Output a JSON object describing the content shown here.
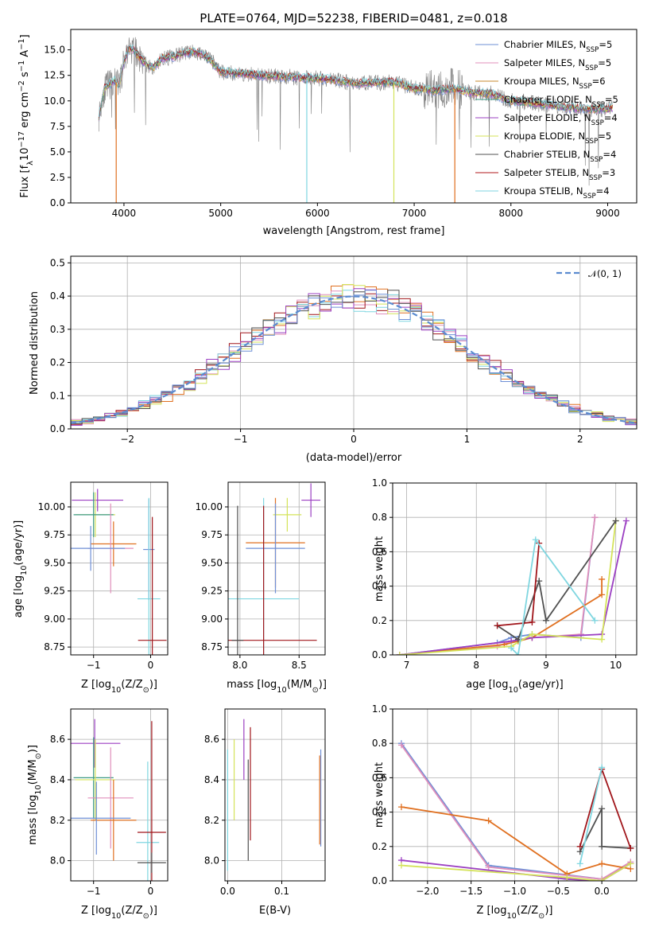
{
  "chart_data": [
    {
      "type": "line",
      "panel": "spectrum",
      "title": "PLATE=0764, MJD=52238, FIBERID=0481, z=0.018",
      "xlabel": "wavelength [Angstrom, rest frame]",
      "ylabel": "Flux [f",
      "ylabel_sub": "λ",
      "ylabel_rest": "10",
      "ylabel_exp1": "−17",
      "ylabel_unit": " erg cm",
      "ylabel_exp2": "−2",
      "ylabel_unit2": " s",
      "ylabel_exp3": "−1",
      "ylabel_unit3": " A",
      "ylabel_exp4": "−1",
      "ylabel_end": "]",
      "xlim": [
        3450,
        9300
      ],
      "ylim": [
        0,
        17
      ],
      "xticks": [
        4000,
        5000,
        6000,
        7000,
        8000,
        9000
      ],
      "yticks": [
        0.0,
        2.5,
        5.0,
        7.5,
        10.0,
        12.5,
        15.0
      ],
      "ytick_labels": [
        "0.0",
        "2.5",
        "5.0",
        "7.5",
        "10.0",
        "12.5",
        "15.0"
      ],
      "grid": false,
      "legend_position": "top-right",
      "data_color": "#808080",
      "continuum": {
        "x": [
          3740,
          3800,
          3900,
          3950,
          4000,
          4050,
          4100,
          4200,
          4300,
          4400,
          4500,
          4600,
          4700,
          4800,
          4900,
          5000,
          5200,
          5400,
          5600,
          5800,
          6000,
          6200,
          6400,
          6600,
          6800,
          7000,
          7200,
          7400,
          7600,
          7800,
          8000,
          8200,
          8400,
          8600,
          8800,
          9000,
          9050
        ],
        "y": [
          8.5,
          11.2,
          12.0,
          11.5,
          13.8,
          15.2,
          15.0,
          13.8,
          13.2,
          14.2,
          14.3,
          14.6,
          14.8,
          14.6,
          14.0,
          12.8,
          12.7,
          12.5,
          12.4,
          12.3,
          12.2,
          12.0,
          11.7,
          11.8,
          11.8,
          11.2,
          11.0,
          11.2,
          10.8,
          10.7,
          10.0,
          9.8,
          9.6,
          9.3,
          9.2,
          9.2,
          9.3
        ]
      },
      "series": [
        {
          "name": "Chabrier MILES, N",
          "sub": "SSP",
          "suffix": "=5",
          "color": "#6e8fd6"
        },
        {
          "name": "Salpeter MILES, N",
          "sub": "SSP",
          "suffix": "=5",
          "color": "#e08fbb"
        },
        {
          "name": "Kroupa MILES, N",
          "sub": "SSP",
          "suffix": "=6",
          "color": "#c78a2e"
        },
        {
          "name": "Chabrier ELODIE, N",
          "sub": "SSP",
          "suffix": "=5",
          "color": "#3d9a86"
        },
        {
          "name": "Salpeter ELODIE, N",
          "sub": "SSP",
          "suffix": "=4",
          "color": "#9b3fc2"
        },
        {
          "name": "Kroupa ELODIE, N",
          "sub": "SSP",
          "suffix": "=5",
          "color": "#d4e35a"
        },
        {
          "name": "Chabrier STELIB, N",
          "sub": "SSP",
          "suffix": "=4",
          "color": "#505050"
        },
        {
          "name": "Salpeter STELIB, N",
          "sub": "SSP",
          "suffix": "=3",
          "color": "#b0191c"
        },
        {
          "name": "Kroupa STELIB, N",
          "sub": "SSP",
          "suffix": "=4",
          "color": "#7fd6e0"
        }
      ]
    },
    {
      "type": "step",
      "panel": "residuals",
      "xlabel": "(data-model)/error",
      "ylabel": "Normed distribution",
      "xlim": [
        -2.5,
        2.5
      ],
      "ylim": [
        0,
        0.52
      ],
      "xticks": [
        -2,
        -1,
        0,
        1,
        2
      ],
      "xtick_labels": [
        "−2",
        "−1",
        "0",
        "1",
        "2"
      ],
      "yticks": [
        0.0,
        0.1,
        0.2,
        0.3,
        0.4,
        0.5
      ],
      "ytick_labels": [
        "0.0",
        "0.1",
        "0.2",
        "0.3",
        "0.4",
        "0.5"
      ],
      "grid": true,
      "legend_position": "top-right",
      "gaussian": {
        "name": "𝒩(0, 1)",
        "color": "#5b8bd0",
        "mean": 0,
        "sigma": 1
      },
      "bin_width": 0.1,
      "series_colors": [
        "#e07020",
        "#e08fbb",
        "#a0151a",
        "#7fd6e0",
        "#d4e35a",
        "#9b3fc2",
        "#505050",
        "#6e8fd6"
      ]
    },
    {
      "type": "scatter",
      "panel": "age-vs-Z",
      "xlabel": "Z [log",
      "xlabel_sub": "10",
      "xlabel_rest": "(Z/Z",
      "xlabel_sun": "⊙",
      "xlabel_end": ")]",
      "ylabel": "age  [log",
      "ylabel_sub": "10",
      "ylabel_rest": "(age/yr)]",
      "xlim": [
        -1.4,
        0.3
      ],
      "ylim": [
        8.68,
        10.22
      ],
      "xticks": [
        -1,
        0
      ],
      "xtick_labels": [
        "−1",
        "0"
      ],
      "yticks": [
        8.75,
        9.0,
        9.25,
        9.5,
        9.75,
        10.0
      ],
      "ytick_labels": [
        "8.75",
        "9.00",
        "9.25",
        "9.50",
        "9.75",
        "10.00"
      ],
      "grid": true,
      "points": [
        {
          "x": -0.93,
          "y": 10.06,
          "xerr": 0.45,
          "yerr": 0.1,
          "color": "#9b3fc2"
        },
        {
          "x": -0.97,
          "y": 9.93,
          "xerr": 0.35,
          "yerr": 0.2,
          "color": "#d4e35a"
        },
        {
          "x": -1.0,
          "y": 9.93,
          "xerr": 0.35,
          "yerr": 0.2,
          "color": "#3d9a86"
        },
        {
          "x": -0.65,
          "y": 9.67,
          "xerr": 0.4,
          "yerr": 0.2,
          "color": "#e07020"
        },
        {
          "x": -0.7,
          "y": 9.63,
          "xerr": 0.4,
          "yerr": 0.4,
          "color": "#e08fbb"
        },
        {
          "x": -1.05,
          "y": 9.63,
          "xerr": 0.6,
          "yerr": 0.2,
          "color": "#6e8fd6"
        },
        {
          "x": -0.03,
          "y": 9.62,
          "xerr": 0.1,
          "yerr": 0.45,
          "color": "#6e8fd6"
        },
        {
          "x": -0.03,
          "y": 9.18,
          "xerr": 0.2,
          "yerr": 0.9,
          "color": "#7fd6e0"
        },
        {
          "x": 0.03,
          "y": 8.81,
          "xerr": 0.25,
          "yerr": 1.1,
          "color": "#a0151a"
        }
      ]
    },
    {
      "type": "scatter",
      "panel": "age-vs-mass",
      "xlabel": "mass [log",
      "xlabel_sub": "10",
      "xlabel_rest": "(M/M",
      "xlabel_sun": "⊙",
      "xlabel_end": ")]",
      "xlim": [
        7.9,
        8.72
      ],
      "ylim": [
        8.68,
        10.22
      ],
      "xticks": [
        8.0,
        8.5
      ],
      "xtick_labels": [
        "8.0",
        "8.5"
      ],
      "yticks": [
        8.75,
        9.0,
        9.25,
        9.5,
        9.75,
        10.0
      ],
      "ytick_labels": [
        "8.75",
        "9.00",
        "9.25",
        "9.50",
        "9.75",
        "10.00"
      ],
      "grid": true,
      "points": [
        {
          "x": 8.6,
          "y": 10.06,
          "xerr": 0.08,
          "yerr": 0.15,
          "color": "#9b3fc2"
        },
        {
          "x": 8.4,
          "y": 9.93,
          "xerr": 0.12,
          "yerr": 0.15,
          "color": "#d4e35a"
        },
        {
          "x": 8.3,
          "y": 9.68,
          "xerr": 0.25,
          "yerr": 0.4,
          "color": "#e07020"
        },
        {
          "x": 8.3,
          "y": 9.63,
          "xerr": 0.25,
          "yerr": 0.4,
          "color": "#6e8fd6"
        },
        {
          "x": 8.2,
          "y": 9.18,
          "xerr": 0.3,
          "yerr": 0.9,
          "color": "#7fd6e0"
        },
        {
          "x": 8.2,
          "y": 8.81,
          "xerr": 0.45,
          "yerr": 1.2,
          "color": "#a0151a"
        },
        {
          "x": 7.98,
          "y": 8.81,
          "xerr": 0.05,
          "yerr": 1.2,
          "color": "#505050"
        }
      ]
    },
    {
      "type": "line",
      "panel": "mass-weight-vs-age",
      "xlabel": "age  [log",
      "xlabel_sub": "10",
      "xlabel_rest": "(age/yr)]",
      "ylabel": "mass weight",
      "xlim": [
        6.8,
        10.3
      ],
      "ylim": [
        0,
        1
      ],
      "xticks": [
        7,
        8,
        9,
        10
      ],
      "xtick_labels": [
        "7",
        "8",
        "9",
        "10"
      ],
      "yticks": [
        0.0,
        0.2,
        0.4,
        0.6,
        0.8,
        1.0
      ],
      "ytick_labels": [
        "0.0",
        "0.2",
        "0.4",
        "0.6",
        "0.8",
        "1.0"
      ],
      "grid": true,
      "series": [
        {
          "color": "#6e8fd6",
          "x": [
            6.9,
            8.3,
            8.5,
            8.8,
            9.5,
            9.7
          ],
          "y": [
            0.0,
            0.07,
            0.1,
            0.12,
            0.1,
            0.8
          ]
        },
        {
          "color": "#e08fbb",
          "x": [
            6.9,
            8.3,
            8.5,
            8.8,
            9.5,
            9.7
          ],
          "y": [
            0.0,
            0.05,
            0.08,
            0.1,
            0.12,
            0.8
          ]
        },
        {
          "color": "#e07020",
          "x": [
            6.9,
            8.4,
            8.6,
            8.8,
            9.8,
            9.8
          ],
          "y": [
            0.0,
            0.06,
            0.08,
            0.1,
            0.35,
            0.44
          ]
        },
        {
          "color": "#9b3fc2",
          "x": [
            6.9,
            8.5,
            8.8,
            9.8,
            10.15
          ],
          "y": [
            0.0,
            0.08,
            0.1,
            0.12,
            0.78
          ]
        },
        {
          "color": "#d4e35a",
          "x": [
            6.9,
            8.5,
            8.8,
            9.8,
            10.0
          ],
          "y": [
            0.0,
            0.05,
            0.12,
            0.09,
            0.78
          ]
        },
        {
          "color": "#505050",
          "x": [
            8.3,
            8.6,
            8.9,
            9.0,
            10.0
          ],
          "y": [
            0.17,
            0.09,
            0.43,
            0.2,
            0.78
          ]
        },
        {
          "color": "#a0151a",
          "x": [
            8.3,
            8.8,
            8.9
          ],
          "y": [
            0.17,
            0.19,
            0.65
          ]
        },
        {
          "color": "#7fd6e0",
          "x": [
            8.5,
            8.6,
            8.85,
            9.7
          ],
          "y": [
            0.04,
            0.0,
            0.67,
            0.2
          ]
        }
      ]
    },
    {
      "type": "scatter",
      "panel": "mass-vs-Z",
      "xlabel": "Z [log",
      "xlabel_sub": "10",
      "xlabel_rest": "(Z/Z",
      "xlabel_sun": "⊙",
      "xlabel_end": ")]",
      "ylabel": "mass [log",
      "ylabel_sub": "10",
      "ylabel_rest": "(M/M",
      "ylabel_sun": "⊙",
      "ylabel_end": ")]",
      "xlim": [
        -1.4,
        0.3
      ],
      "ylim": [
        7.9,
        8.75
      ],
      "xticks": [
        -1,
        0
      ],
      "xtick_labels": [
        "−1",
        "0"
      ],
      "yticks": [
        8.0,
        8.2,
        8.4,
        8.6
      ],
      "ytick_labels": [
        "8.0",
        "8.2",
        "8.4",
        "8.6"
      ],
      "grid": true,
      "points": [
        {
          "x": -0.98,
          "y": 8.58,
          "xerr": 0.45,
          "yerr": 0.12,
          "color": "#9b3fc2"
        },
        {
          "x": -1.0,
          "y": 8.41,
          "xerr": 0.35,
          "yerr": 0.2,
          "color": "#3d9a86"
        },
        {
          "x": -0.97,
          "y": 8.4,
          "xerr": 0.35,
          "yerr": 0.2,
          "color": "#d4e35a"
        },
        {
          "x": -0.7,
          "y": 8.31,
          "xerr": 0.4,
          "yerr": 0.25,
          "color": "#e08fbb"
        },
        {
          "x": -0.65,
          "y": 8.2,
          "xerr": 0.4,
          "yerr": 0.2,
          "color": "#e07020"
        },
        {
          "x": -0.95,
          "y": 8.21,
          "xerr": 0.6,
          "yerr": 0.18,
          "color": "#6e8fd6"
        },
        {
          "x": -0.05,
          "y": 8.09,
          "xerr": 0.2,
          "yerr": 0.4,
          "color": "#7fd6e0"
        },
        {
          "x": 0.02,
          "y": 8.14,
          "xerr": 0.25,
          "yerr": 0.55,
          "color": "#a0151a"
        },
        {
          "x": 0.02,
          "y": 7.99,
          "xerr": 0.25,
          "yerr": 0.05,
          "color": "#505050"
        }
      ]
    },
    {
      "type": "errorbar",
      "panel": "mass-vs-EBV",
      "xlabel": "E(B-V)",
      "xlim": [
        -0.005,
        0.18
      ],
      "ylim": [
        7.9,
        8.75
      ],
      "xticks": [
        0.0,
        0.1
      ],
      "xtick_labels": [
        "0.0",
        "0.1"
      ],
      "yticks": [
        8.0,
        8.2,
        8.4,
        8.6
      ],
      "ytick_labels": [
        "8.0",
        "8.2",
        "8.4",
        "8.6"
      ],
      "grid": true,
      "points": [
        {
          "x": 0.0,
          "y": 8.25,
          "yerr": 0.3,
          "color": "#7fd6e0"
        },
        {
          "x": 0.012,
          "y": 8.4,
          "yerr": 0.2,
          "color": "#d4e35a"
        },
        {
          "x": 0.03,
          "y": 8.55,
          "yerr": 0.15,
          "color": "#9b3fc2"
        },
        {
          "x": 0.038,
          "y": 8.25,
          "yerr": 0.25,
          "color": "#505050"
        },
        {
          "x": 0.042,
          "y": 8.38,
          "yerr": 0.28,
          "color": "#a0151a"
        },
        {
          "x": 0.17,
          "y": 8.3,
          "yerr": 0.22,
          "color": "#e07020"
        },
        {
          "x": 0.172,
          "y": 8.31,
          "yerr": 0.24,
          "color": "#6e8fd6"
        }
      ]
    },
    {
      "type": "line",
      "panel": "mass-weight-vs-Z",
      "xlabel": "Z [log",
      "xlabel_sub": "10",
      "xlabel_rest": "(Z/Z",
      "xlabel_sun": "⊙",
      "xlabel_end": ")]",
      "ylabel": "mass weight",
      "xlim": [
        -2.4,
        0.4
      ],
      "ylim": [
        0,
        1
      ],
      "xticks": [
        -2.0,
        -1.5,
        -1.0,
        -0.5,
        0.0
      ],
      "xtick_labels": [
        "−2.0",
        "−1.5",
        "−1.0",
        "−0.5",
        "0.0"
      ],
      "yticks": [
        0.0,
        0.2,
        0.4,
        0.6,
        0.8,
        1.0
      ],
      "ytick_labels": [
        "0.0",
        "0.2",
        "0.4",
        "0.6",
        "0.8",
        "1.0"
      ],
      "grid": true,
      "series": [
        {
          "color": "#6e8fd6",
          "x": [
            -2.3,
            -1.3,
            0.0,
            0.33
          ],
          "y": [
            0.8,
            0.09,
            0.01,
            0.1
          ]
        },
        {
          "color": "#e08fbb",
          "x": [
            -2.3,
            -1.3,
            0.0,
            0.33
          ],
          "y": [
            0.79,
            0.08,
            0.01,
            0.11
          ]
        },
        {
          "color": "#e07020",
          "x": [
            -2.3,
            -1.3,
            -0.4,
            0.0,
            0.33
          ],
          "y": [
            0.43,
            0.35,
            0.04,
            0.1,
            0.07
          ]
        },
        {
          "color": "#9b3fc2",
          "x": [
            -2.3,
            -0.4,
            0.0,
            0.33
          ],
          "y": [
            0.12,
            0.01,
            0.0,
            0.1
          ]
        },
        {
          "color": "#d4e35a",
          "x": [
            -2.3,
            -0.4,
            0.0,
            0.33
          ],
          "y": [
            0.09,
            0.02,
            0.0,
            0.1
          ]
        },
        {
          "color": "#505050",
          "x": [
            -0.25,
            0.0,
            0.0,
            0.33
          ],
          "y": [
            0.17,
            0.42,
            0.2,
            0.19
          ]
        },
        {
          "color": "#a0151a",
          "x": [
            -0.25,
            0.0,
            0.33
          ],
          "y": [
            0.2,
            0.65,
            0.19
          ]
        },
        {
          "color": "#7fd6e0",
          "x": [
            -0.25,
            0.0
          ],
          "y": [
            0.1,
            0.66
          ]
        }
      ]
    }
  ]
}
